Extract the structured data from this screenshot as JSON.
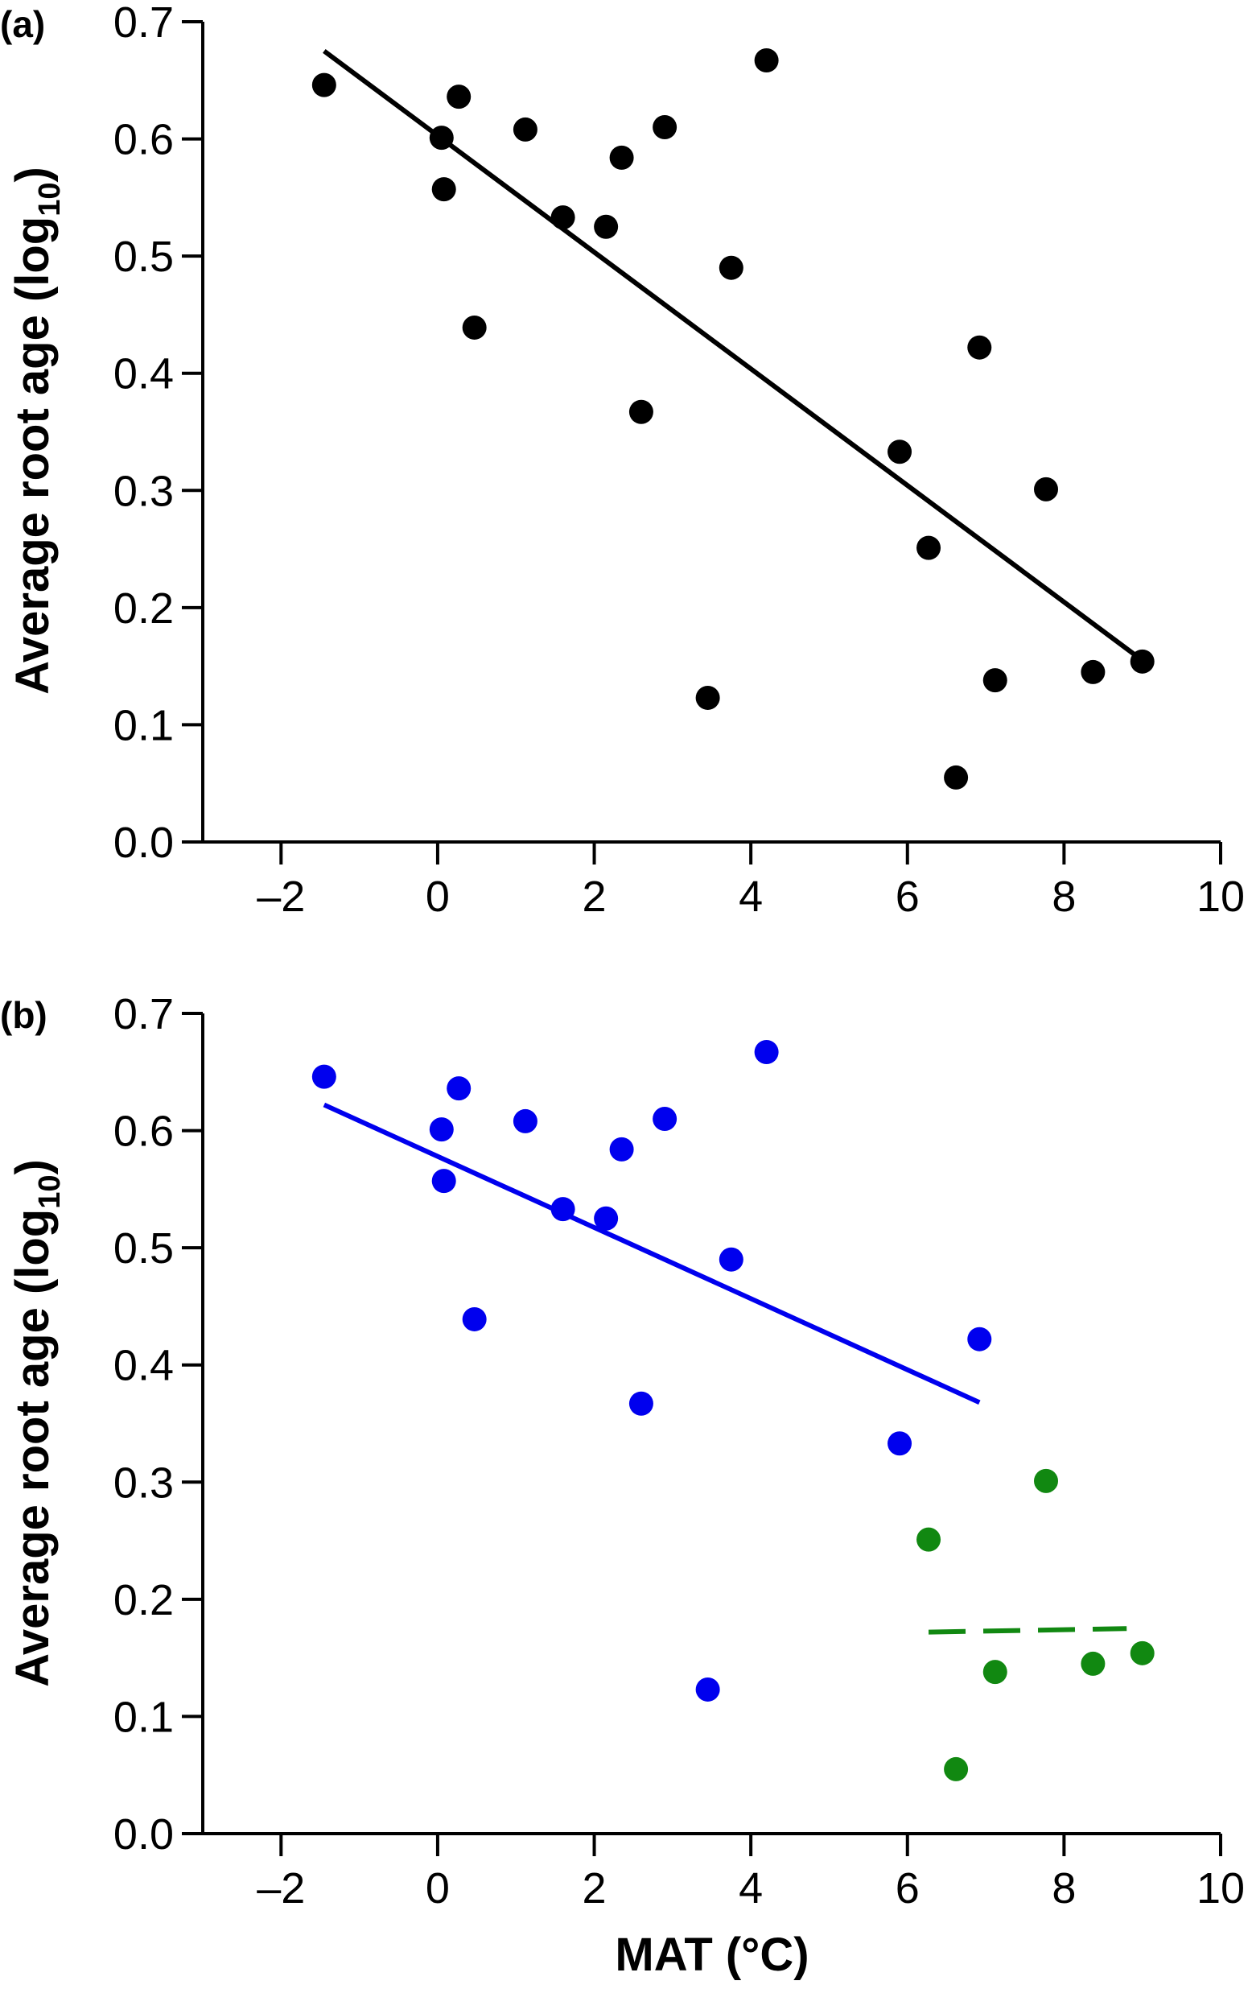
{
  "figure": {
    "xlabel": "MAT (°C)",
    "ylabel_main": "Average root age (log",
    "ylabel_sub": "10",
    "ylabel_close": ")"
  },
  "chart_data": [
    {
      "type": "scatter",
      "panel_label": "(a)",
      "xlabel": "",
      "ylabel": "Average root age (log10)",
      "xlim": [
        -3,
        10
      ],
      "ylim": [
        0.0,
        0.7
      ],
      "x_ticks": [
        -2,
        0,
        2,
        4,
        6,
        8,
        10
      ],
      "x_tick_labels": [
        "–2",
        "0",
        "2",
        "4",
        "6",
        "8",
        "10"
      ],
      "y_ticks": [
        0.0,
        0.1,
        0.2,
        0.3,
        0.4,
        0.5,
        0.6,
        0.7
      ],
      "y_tick_labels": [
        "0.0",
        "0.1",
        "0.2",
        "0.3",
        "0.4",
        "0.5",
        "0.6",
        "0.7"
      ],
      "grid": false,
      "series": [
        {
          "color": "#000000",
          "points": [
            [
              -1.45,
              0.646
            ],
            [
              0.05,
              0.601
            ],
            [
              0.08,
              0.557
            ],
            [
              0.27,
              0.636
            ],
            [
              0.47,
              0.439
            ],
            [
              1.12,
              0.608
            ],
            [
              1.6,
              0.533
            ],
            [
              2.15,
              0.525
            ],
            [
              2.35,
              0.584
            ],
            [
              2.6,
              0.367
            ],
            [
              2.9,
              0.61
            ],
            [
              3.45,
              0.123
            ],
            [
              3.75,
              0.49
            ],
            [
              4.2,
              0.667
            ],
            [
              5.9,
              0.333
            ],
            [
              6.27,
              0.251
            ],
            [
              6.62,
              0.055
            ],
            [
              6.92,
              0.422
            ],
            [
              7.12,
              0.138
            ],
            [
              7.77,
              0.301
            ],
            [
              8.37,
              0.145
            ],
            [
              9.0,
              0.154
            ]
          ]
        }
      ],
      "fit_lines": [
        {
          "color": "#000000",
          "style": "solid",
          "x": [
            -1.45,
            9.0
          ],
          "y": [
            0.675,
            0.155
          ]
        }
      ]
    },
    {
      "type": "scatter",
      "panel_label": "(b)",
      "xlabel": "MAT (°C)",
      "ylabel": "Average root age (log10)",
      "xlim": [
        -3,
        10
      ],
      "ylim": [
        0.0,
        0.7
      ],
      "x_ticks": [
        -2,
        0,
        2,
        4,
        6,
        8,
        10
      ],
      "x_tick_labels": [
        "–2",
        "0",
        "2",
        "4",
        "6",
        "8",
        "10"
      ],
      "y_ticks": [
        0.0,
        0.1,
        0.2,
        0.3,
        0.4,
        0.5,
        0.6,
        0.7
      ],
      "y_tick_labels": [
        "0.0",
        "0.1",
        "0.2",
        "0.3",
        "0.4",
        "0.5",
        "0.6",
        "0.7"
      ],
      "grid": false,
      "series": [
        {
          "color": "#0000ee",
          "points": [
            [
              -1.45,
              0.646
            ],
            [
              0.05,
              0.601
            ],
            [
              0.08,
              0.557
            ],
            [
              0.27,
              0.636
            ],
            [
              0.47,
              0.439
            ],
            [
              1.12,
              0.608
            ],
            [
              1.6,
              0.533
            ],
            [
              2.15,
              0.525
            ],
            [
              2.35,
              0.584
            ],
            [
              2.6,
              0.367
            ],
            [
              2.9,
              0.61
            ],
            [
              3.45,
              0.123
            ],
            [
              3.75,
              0.49
            ],
            [
              4.2,
              0.667
            ],
            [
              5.9,
              0.333
            ],
            [
              6.92,
              0.422
            ]
          ]
        },
        {
          "color": "#118811",
          "points": [
            [
              6.27,
              0.251
            ],
            [
              6.62,
              0.055
            ],
            [
              7.12,
              0.138
            ],
            [
              7.77,
              0.301
            ],
            [
              8.37,
              0.145
            ],
            [
              9.0,
              0.154
            ]
          ]
        }
      ],
      "fit_lines": [
        {
          "color": "#0000ee",
          "style": "solid",
          "x": [
            -1.45,
            6.92
          ],
          "y": [
            0.622,
            0.368
          ]
        },
        {
          "color": "#118811",
          "style": "dashed",
          "x": [
            6.27,
            8.8
          ],
          "y": [
            0.172,
            0.175
          ]
        }
      ]
    }
  ]
}
